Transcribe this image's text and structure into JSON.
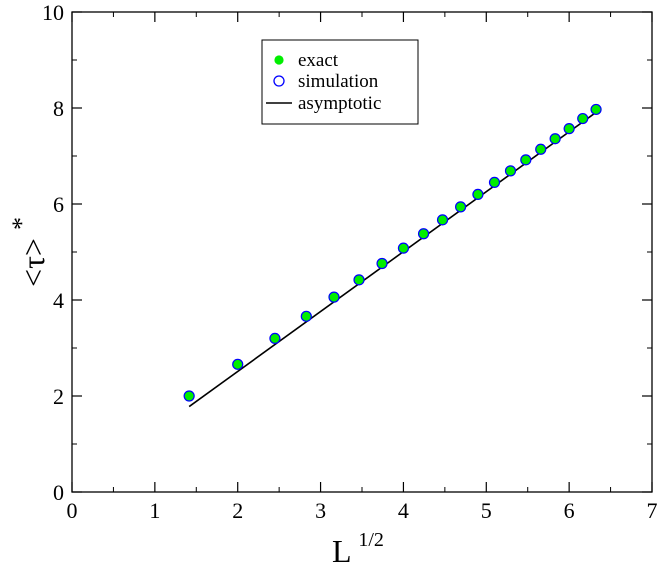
{
  "chart_data": {
    "type": "scatter",
    "xlabel": {
      "base": "L",
      "exponent": "1/2"
    },
    "ylabel": {
      "text": "<τ>",
      "superscript": "*"
    },
    "xlim": [
      0,
      7
    ],
    "ylim": [
      0,
      10
    ],
    "x_ticks": [
      0,
      1,
      2,
      3,
      4,
      5,
      6,
      7
    ],
    "y_ticks": [
      0,
      2,
      4,
      6,
      8,
      10
    ],
    "grid": false,
    "legend_position": "top-center",
    "series": [
      {
        "name": "exact",
        "kind": "filled-circle",
        "color": "#00ee00",
        "x": [
          1.414,
          2.0,
          2.449,
          2.828,
          3.162,
          3.464,
          3.742,
          4.0,
          4.243,
          4.472,
          4.69,
          4.899,
          5.099,
          5.292,
          5.477,
          5.657,
          5.831,
          6.0,
          6.164,
          6.325
        ],
        "y": [
          2.0,
          2.66,
          3.2,
          3.66,
          4.06,
          4.42,
          4.76,
          5.08,
          5.38,
          5.67,
          5.94,
          6.2,
          6.45,
          6.69,
          6.92,
          7.14,
          7.36,
          7.57,
          7.78,
          7.97
        ]
      },
      {
        "name": "simulation",
        "kind": "open-circle",
        "color": "#0000ff",
        "x": [
          1.414,
          2.0,
          2.449,
          2.828,
          3.162,
          3.464,
          3.742,
          4.0,
          4.243,
          4.472,
          4.69,
          4.899,
          5.099,
          5.292,
          5.477,
          5.657,
          5.831,
          6.0,
          6.164,
          6.325
        ],
        "y": [
          2.0,
          2.66,
          3.2,
          3.66,
          4.06,
          4.42,
          4.76,
          5.08,
          5.38,
          5.67,
          5.94,
          6.2,
          6.45,
          6.69,
          6.92,
          7.14,
          7.36,
          7.57,
          7.78,
          7.97
        ]
      },
      {
        "name": "asymptotic",
        "kind": "line",
        "color": "#000000",
        "x": [
          1.414,
          6.325
        ],
        "y": [
          1.78,
          7.91
        ]
      }
    ]
  }
}
